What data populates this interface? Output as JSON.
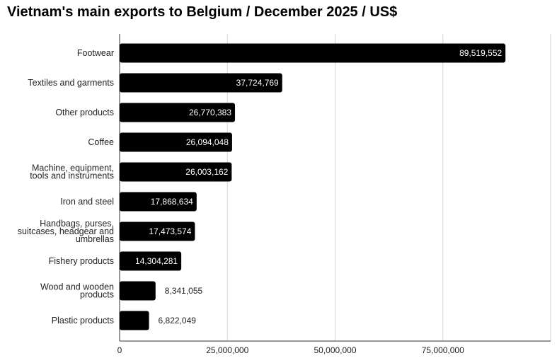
{
  "chart_data": {
    "type": "bar",
    "orientation": "horizontal",
    "title": "Vietnam's main exports to Belgium / December 2025 / US$",
    "xlabel": "",
    "ylabel": "",
    "categories": [
      "Footwear",
      "Textiles and garments",
      "Other products",
      "Coffee",
      "Machine, equipment, tools and instruments",
      "Iron and steel",
      "Handbags, purses, suitcases, headgear and umbrellas",
      "Fishery products",
      "Wood and wooden products",
      "Plastic products"
    ],
    "category_lines": [
      [
        "Footwear"
      ],
      [
        "Textiles and garments"
      ],
      [
        "Other products"
      ],
      [
        "Coffee"
      ],
      [
        "Machine, equipment,",
        "tools and instruments"
      ],
      [
        "Iron and steel"
      ],
      [
        "Handbags, purses,",
        "suitcases, headgear and",
        "umbrellas"
      ],
      [
        "Fishery products"
      ],
      [
        "Wood and wooden",
        "products"
      ],
      [
        "Plastic products"
      ]
    ],
    "values": [
      89519552,
      37724769,
      26770383,
      26094048,
      26003162,
      17868634,
      17473574,
      14304281,
      8341055,
      6822049
    ],
    "value_labels": [
      "89,519,552",
      "37,724,769",
      "26,770,383",
      "26,094,048",
      "26,003,162",
      "17,868,634",
      "17,473,574",
      "14,304,281",
      "8,341,055",
      "6,822,049"
    ],
    "xlim": [
      0,
      100000000
    ],
    "xticks": [
      0,
      25000000,
      50000000,
      75000000
    ],
    "xtick_labels": [
      "0",
      "25,000,000",
      "50,000,000",
      "75,000,000"
    ],
    "grid": true,
    "legend": "none",
    "bar_color": "#000000",
    "grid_color": "#d3d3d3",
    "label_inside_color": "#ffffff",
    "label_outside_color": "#222222"
  }
}
